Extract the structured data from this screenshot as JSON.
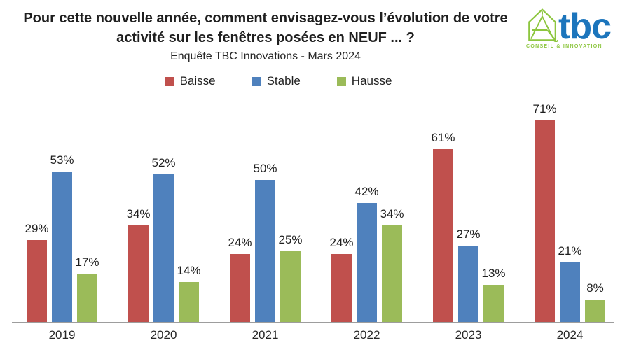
{
  "header": {
    "title": "Pour cette nouvelle année, comment envisagez-vous l’évolution de votre activité sur les fenêtres posées en NEUF ... ?",
    "subtitle": "Enquête TBC Innovations - Mars 2024"
  },
  "logo": {
    "text": "tbc",
    "tagline": "CONSEIL & INNOVATION",
    "icon": "house-outline-icon",
    "colors": {
      "blue": "#1C75BC",
      "green": "#8DC63F"
    }
  },
  "chart_data": {
    "type": "bar",
    "title": "Pour cette nouvelle année, comment envisagez-vous l’évolution de votre activité sur les fenêtres posées en NEUF ... ?",
    "subtitle": "Enquête TBC Innovations - Mars 2024",
    "categories": [
      "2019",
      "2020",
      "2021",
      "2022",
      "2023",
      "2024"
    ],
    "series": [
      {
        "name": "Baisse",
        "color": "#C0504D",
        "values": [
          29,
          34,
          24,
          24,
          61,
          71
        ]
      },
      {
        "name": "Stable",
        "color": "#4F81BD",
        "values": [
          53,
          52,
          50,
          42,
          27,
          21
        ]
      },
      {
        "name": "Hausse",
        "color": "#9BBB59",
        "values": [
          17,
          14,
          25,
          34,
          13,
          8
        ]
      }
    ],
    "value_suffix": "%",
    "data_labels": true,
    "grid": false,
    "legend_position": "top",
    "ylim": [
      0,
      78
    ],
    "axis_color": "#9D9D9D"
  }
}
